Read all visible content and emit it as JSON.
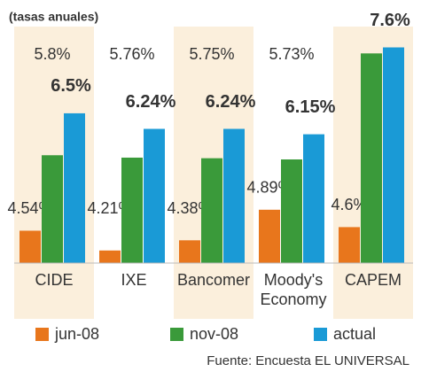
{
  "chart_data": {
    "type": "bar",
    "subtitle": "(tasas anuales)",
    "source": "Fuente: Encuesta EL UNIVERSAL",
    "categories": [
      "CIDE",
      "IXE",
      "Bancomer",
      "Moody's Economy",
      "CAPEM"
    ],
    "series": [
      {
        "name": "jun-08",
        "color": "#e8761c",
        "values": [
          4.54,
          4.21,
          4.38,
          4.89,
          4.6
        ],
        "value_labels": [
          "4.54%",
          "4.21%",
          "4.38%",
          "4.89%",
          "4.6%"
        ]
      },
      {
        "name": "nov-08",
        "color": "#3a9a3a",
        "values": [
          5.8,
          5.76,
          5.75,
          5.73,
          7.5
        ],
        "value_labels": [
          "5.8%",
          "5.76%",
          "5.75%",
          "5.73%",
          null
        ]
      },
      {
        "name": "actual",
        "color": "#1a9ad6",
        "values": [
          6.5,
          6.24,
          6.24,
          6.15,
          7.6
        ],
        "value_labels": [
          "6.5%",
          "6.24%",
          "6.24%",
          "6.15%",
          "7.6%"
        ]
      }
    ],
    "ylim": [
      4,
      7.8
    ]
  }
}
